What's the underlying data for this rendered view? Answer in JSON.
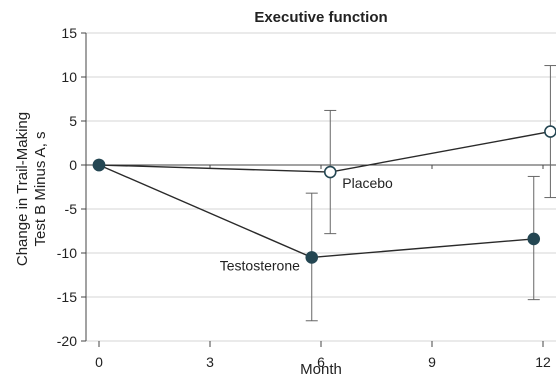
{
  "chart_data": {
    "type": "line",
    "title": "Executive function",
    "xlabel": "Month",
    "ylabel_lines": [
      "Change in Trail-Making",
      "Test B Minus A, s"
    ],
    "xlim": [
      0,
      12
    ],
    "ylim": [
      -20,
      15
    ],
    "xticks": [
      0,
      3,
      6,
      9,
      12
    ],
    "yticks": [
      15,
      10,
      5,
      0,
      -5,
      -10,
      -15,
      -20
    ],
    "grid": "horizontal",
    "series": [
      {
        "name": "Placebo",
        "marker": "open-circle",
        "x": [
          0,
          6.25,
          12.2
        ],
        "y": [
          0,
          -0.8,
          3.8
        ],
        "err_low": [
          null,
          -7.8,
          -3.7
        ],
        "err_high": [
          null,
          6.2,
          11.3
        ]
      },
      {
        "name": "Testosterone",
        "marker": "filled-circle",
        "x": [
          0,
          5.75,
          11.75
        ],
        "y": [
          0,
          -10.5,
          -8.4
        ],
        "err_low": [
          null,
          -17.7,
          -15.3
        ],
        "err_high": [
          null,
          -3.2,
          -1.3
        ]
      }
    ],
    "colors": {
      "line": "#2a2a2a",
      "marker": "#244652",
      "grid": "#c8c8c8",
      "axis": "#444444"
    }
  }
}
